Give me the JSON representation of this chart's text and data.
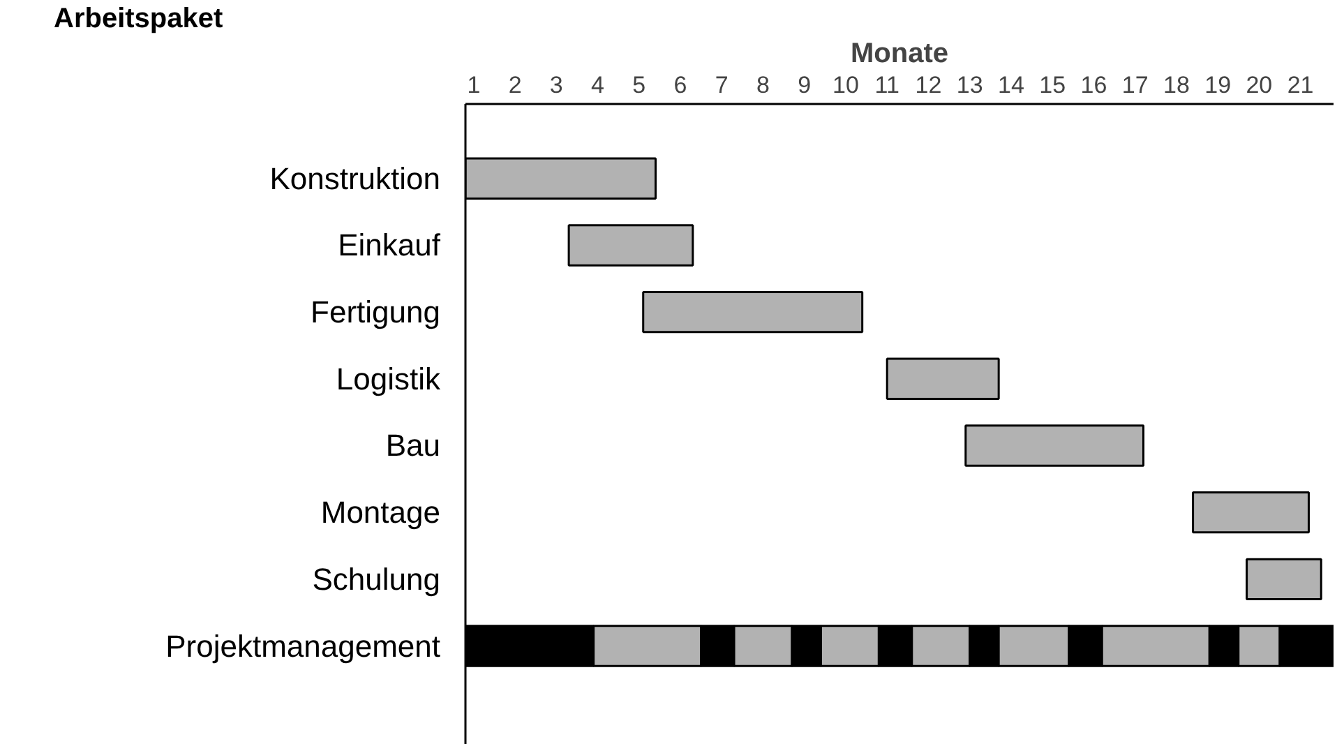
{
  "chart_data": {
    "type": "bar",
    "orientation": "horizontal",
    "xlabel": "Monate",
    "ylabel": "Arbeitspaket",
    "categories": [
      "Konstruktion",
      "Einkauf",
      "Fertigung",
      "Logistik",
      "Bau",
      "Montage",
      "Schulung",
      "Projektmanagement"
    ],
    "xlim": [
      0.8,
      21.8
    ],
    "xticks": [
      1,
      2,
      3,
      4,
      5,
      6,
      7,
      8,
      9,
      10,
      11,
      12,
      13,
      14,
      15,
      16,
      17,
      18,
      19,
      20,
      21
    ],
    "grid": false,
    "series": [
      {
        "color": "#b2b2b2",
        "base": [
          0.8,
          3.3,
          5.1,
          11.0,
          12.9,
          18.4,
          19.7,
          null
        ],
        "values": [
          4.6,
          3.0,
          5.3,
          2.7,
          4.3,
          2.8,
          1.8,
          null
        ]
      },
      {
        "color": "#000000",
        "base": [
          null,
          null,
          null,
          null,
          null,
          null,
          null,
          0.8
        ],
        "values": [
          null,
          null,
          null,
          null,
          null,
          null,
          null,
          3.1
        ]
      },
      {
        "color": "#b2b2b2",
        "base": [
          null,
          null,
          null,
          null,
          null,
          null,
          null,
          3.9
        ],
        "values": [
          null,
          null,
          null,
          null,
          null,
          null,
          null,
          2.6
        ]
      },
      {
        "color": "#000000",
        "base": [
          null,
          null,
          null,
          null,
          null,
          null,
          null,
          6.5
        ],
        "values": [
          null,
          null,
          null,
          null,
          null,
          null,
          null,
          0.8
        ]
      },
      {
        "color": "#b2b2b2",
        "base": [
          null,
          null,
          null,
          null,
          null,
          null,
          null,
          7.3
        ],
        "values": [
          null,
          null,
          null,
          null,
          null,
          null,
          null,
          1.4
        ]
      },
      {
        "color": "#000000",
        "base": [
          null,
          null,
          null,
          null,
          null,
          null,
          null,
          8.7
        ],
        "values": [
          null,
          null,
          null,
          null,
          null,
          null,
          null,
          0.7
        ]
      },
      {
        "color": "#b2b2b2",
        "base": [
          null,
          null,
          null,
          null,
          null,
          null,
          null,
          9.4
        ],
        "values": [
          null,
          null,
          null,
          null,
          null,
          null,
          null,
          1.4
        ]
      },
      {
        "color": "#000000",
        "base": [
          null,
          null,
          null,
          null,
          null,
          null,
          null,
          10.8
        ],
        "values": [
          null,
          null,
          null,
          null,
          null,
          null,
          null,
          0.8
        ]
      },
      {
        "color": "#b2b2b2",
        "base": [
          null,
          null,
          null,
          null,
          null,
          null,
          null,
          11.6
        ],
        "values": [
          null,
          null,
          null,
          null,
          null,
          null,
          null,
          1.4
        ]
      },
      {
        "color": "#000000",
        "base": [
          null,
          null,
          null,
          null,
          null,
          null,
          null,
          13.0
        ],
        "values": [
          null,
          null,
          null,
          null,
          null,
          null,
          null,
          0.7
        ]
      },
      {
        "color": "#b2b2b2",
        "base": [
          null,
          null,
          null,
          null,
          null,
          null,
          null,
          13.7
        ],
        "values": [
          null,
          null,
          null,
          null,
          null,
          null,
          null,
          1.7
        ]
      },
      {
        "color": "#000000",
        "base": [
          null,
          null,
          null,
          null,
          null,
          null,
          null,
          15.4
        ],
        "values": [
          null,
          null,
          null,
          null,
          null,
          null,
          null,
          0.8
        ]
      },
      {
        "color": "#b2b2b2",
        "base": [
          null,
          null,
          null,
          null,
          null,
          null,
          null,
          16.2
        ],
        "values": [
          null,
          null,
          null,
          null,
          null,
          null,
          null,
          2.6
        ]
      },
      {
        "color": "#000000",
        "base": [
          null,
          null,
          null,
          null,
          null,
          null,
          null,
          18.8
        ],
        "values": [
          null,
          null,
          null,
          null,
          null,
          null,
          null,
          0.7
        ]
      },
      {
        "color": "#b2b2b2",
        "base": [
          null,
          null,
          null,
          null,
          null,
          null,
          null,
          19.5
        ],
        "values": [
          null,
          null,
          null,
          null,
          null,
          null,
          null,
          1.0
        ]
      },
      {
        "color": "#000000",
        "base": [
          null,
          null,
          null,
          null,
          null,
          null,
          null,
          20.5
        ],
        "values": [
          null,
          null,
          null,
          null,
          null,
          null,
          null,
          1.3
        ]
      }
    ]
  }
}
